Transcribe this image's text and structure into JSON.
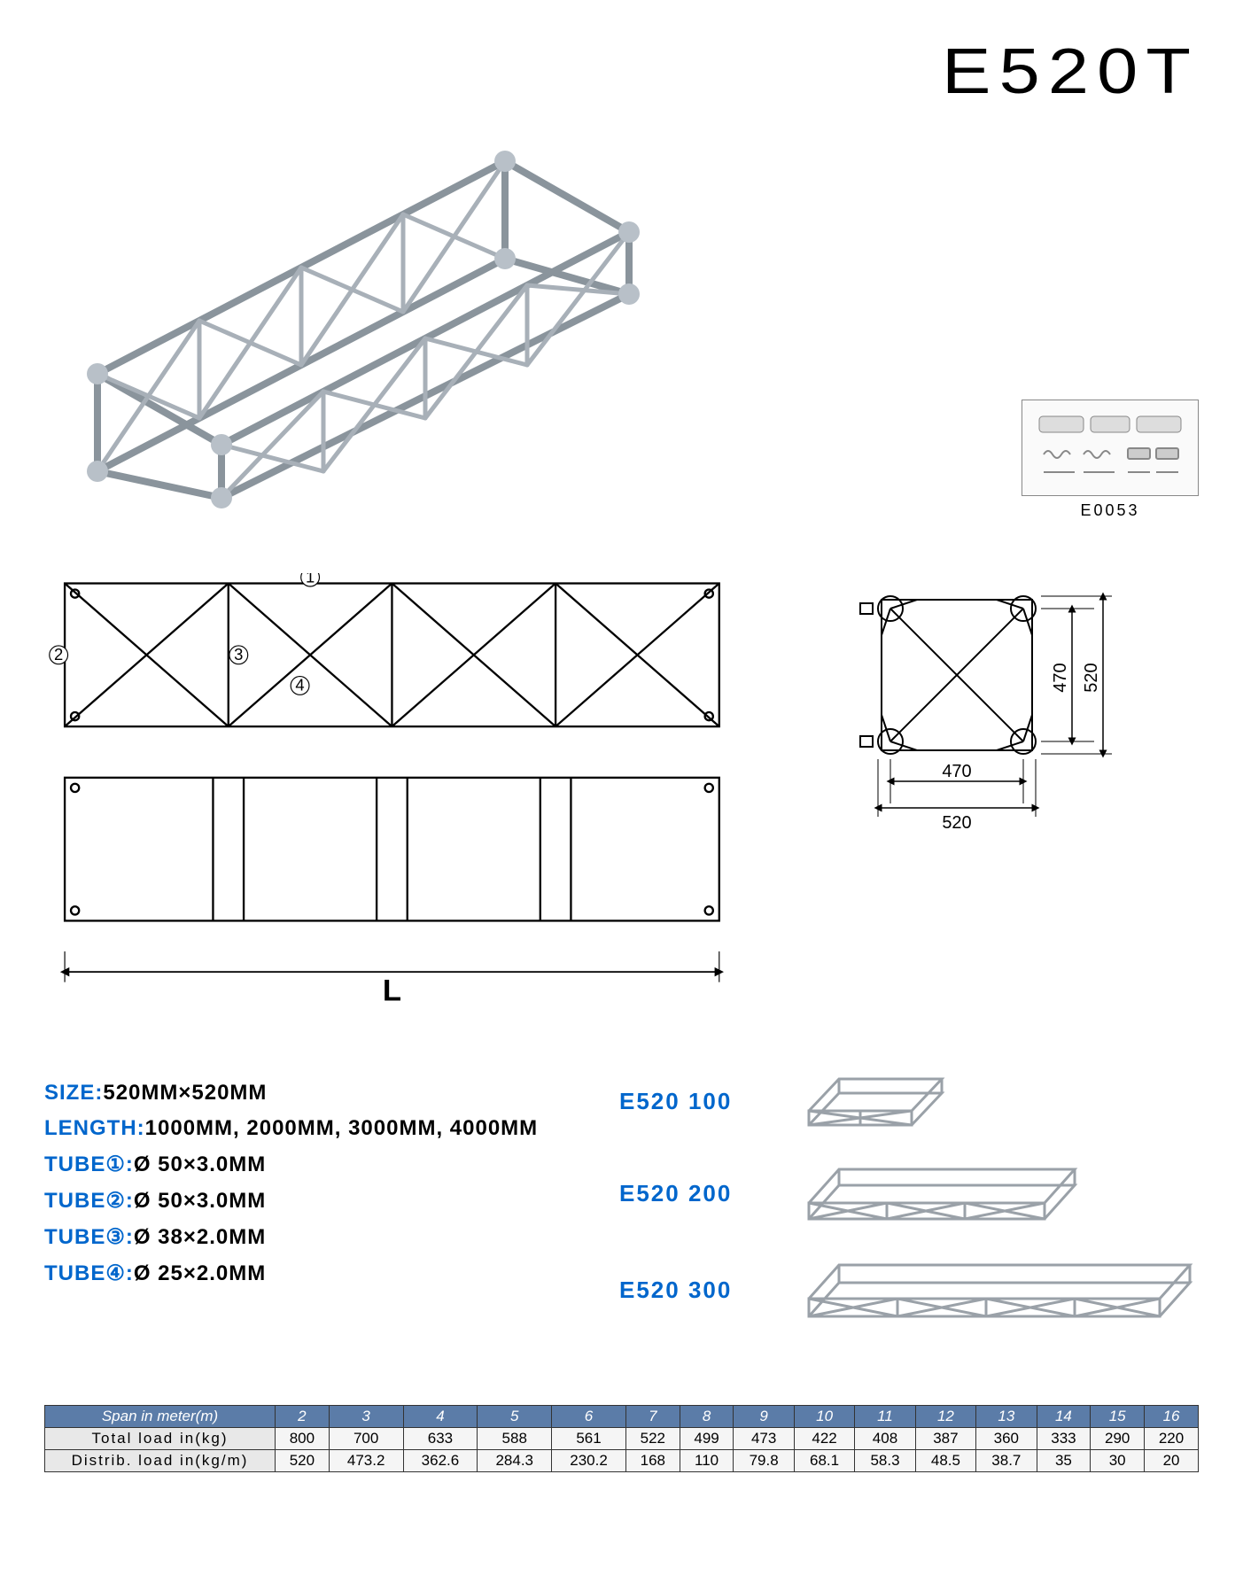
{
  "model": "E520T",
  "accessory_code": "E0053",
  "cross_section": {
    "inner_w": "470",
    "outer_w": "520",
    "inner_h": "470",
    "outer_h": "520"
  },
  "length_symbol": "L",
  "specs": [
    {
      "label": "SIZE:",
      "value": "520MM×520MM"
    },
    {
      "label": "LENGTH:",
      "value": "1000MM, 2000MM, 3000MM, 4000MM"
    },
    {
      "label": "TUBE①:",
      "value": "Ø 50×3.0MM"
    },
    {
      "label": "TUBE②:",
      "value": "Ø 50×3.0MM"
    },
    {
      "label": "TUBE③:",
      "value": "Ø 38×2.0MM"
    },
    {
      "label": "TUBE④:",
      "value": "Ø 25×2.0MM"
    }
  ],
  "variants": [
    "E520 100",
    "E520 200",
    "E520 300"
  ],
  "table": {
    "header_label": "Span in meter(m)",
    "spans": [
      "2",
      "3",
      "4",
      "5",
      "6",
      "7",
      "8",
      "9",
      "10",
      "11",
      "12",
      "13",
      "14",
      "15",
      "16"
    ],
    "rows": [
      {
        "label": "Total load in(kg)",
        "values": [
          "800",
          "700",
          "633",
          "588",
          "561",
          "522",
          "499",
          "473",
          "422",
          "408",
          "387",
          "360",
          "333",
          "290",
          "220"
        ]
      },
      {
        "label": "Distrib. load in(kg/m)",
        "values": [
          "520",
          "473.2",
          "362.6",
          "284.3",
          "230.2",
          "168",
          "110",
          "79.8",
          "68.1",
          "58.3",
          "48.5",
          "38.7",
          "35",
          "30",
          "20"
        ]
      }
    ]
  },
  "colors": {
    "accent": "#0066cc",
    "table_header_bg": "#5b7ca8",
    "tube": "#9aa1a8"
  }
}
